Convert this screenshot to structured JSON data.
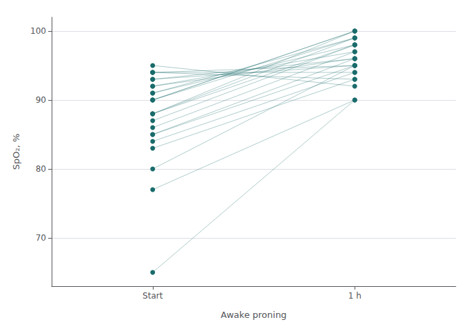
{
  "chart_data": {
    "type": "slope",
    "categories": [
      "Start",
      "1 h"
    ],
    "x_label": "Awake proning",
    "y_label": "SpO₂, %",
    "pairs": [
      [
        65,
        90
      ],
      [
        77,
        90
      ],
      [
        80,
        95
      ],
      [
        83,
        93
      ],
      [
        84,
        94
      ],
      [
        85,
        95
      ],
      [
        85,
        96
      ],
      [
        86,
        97
      ],
      [
        87,
        98
      ],
      [
        88,
        98
      ],
      [
        88,
        99
      ],
      [
        88,
        100
      ],
      [
        90,
        100
      ],
      [
        90,
        100
      ],
      [
        90,
        99
      ],
      [
        91,
        99
      ],
      [
        91,
        98
      ],
      [
        92,
        97
      ],
      [
        92,
        96
      ],
      [
        93,
        96
      ],
      [
        93,
        95
      ],
      [
        94,
        95
      ],
      [
        94,
        94
      ],
      [
        94,
        93
      ],
      [
        95,
        92
      ]
    ],
    "color": "#1a6b6b",
    "ylim": [
      63,
      102
    ],
    "yticks": [
      70,
      80,
      90,
      100
    ],
    "grid": true
  }
}
